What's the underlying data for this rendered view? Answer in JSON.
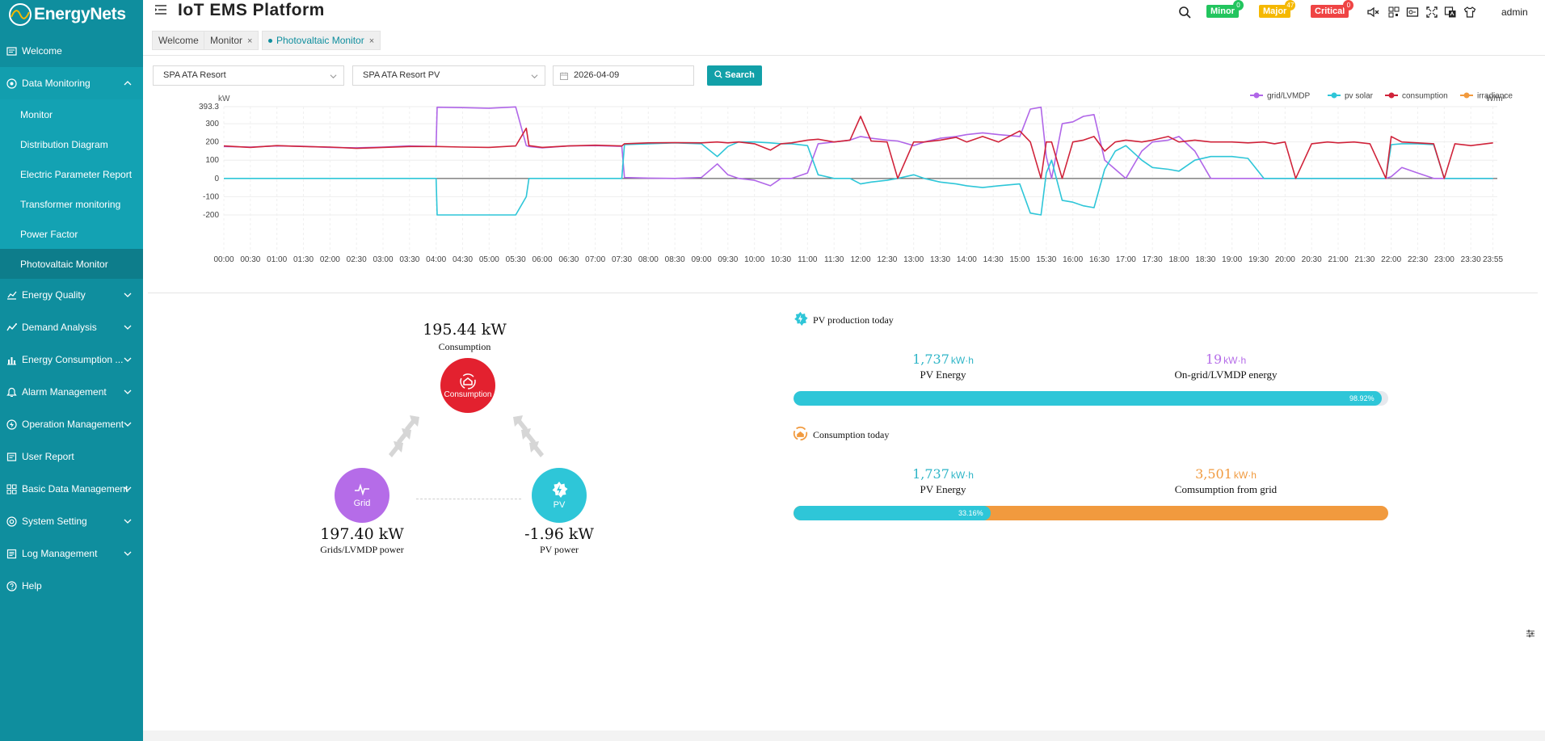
{
  "app": {
    "logo_text": "EnergyNets",
    "title": "IoT EMS Platform",
    "user": "admin"
  },
  "colors": {
    "sidebar": "#0f8e9e",
    "accent": "#12a0a8",
    "grid": "#b066e8",
    "pv": "#2ec6d8",
    "consumption": "#d0233a",
    "irradiance": "#f19a3e"
  },
  "alarms": [
    {
      "label": "Minor",
      "count": "0",
      "color": "#22c55e"
    },
    {
      "label": "Major",
      "count": "47",
      "color": "#f5b800"
    },
    {
      "label": "Critical",
      "count": "0",
      "color": "#ef4444"
    }
  ],
  "header_icons": [
    "search-icon",
    "mute-icon",
    "qrcode-icon",
    "screen-icon",
    "fullscreen-icon",
    "translate-icon",
    "theme-icon"
  ],
  "sidebar": {
    "items": [
      {
        "label": "Welcome",
        "icon": "welcome-icon"
      },
      {
        "label": "Data Monitoring",
        "icon": "monitoring-icon",
        "open": true,
        "children": [
          "Monitor",
          "Distribution Diagram",
          "Electric Parameter Report",
          "Transformer monitoring",
          "Power Factor",
          "Photovaltaic Monitor"
        ]
      },
      {
        "label": "Energy Quality",
        "icon": "quality-icon"
      },
      {
        "label": "Demand Analysis",
        "icon": "demand-icon"
      },
      {
        "label": "Energy Consumption ...",
        "icon": "consumption-icon"
      },
      {
        "label": "Alarm Management",
        "icon": "alarm-icon"
      },
      {
        "label": "Operation Management",
        "icon": "operation-icon"
      },
      {
        "label": "User Report",
        "icon": "report-icon"
      },
      {
        "label": "Basic Data Management",
        "icon": "data-icon"
      },
      {
        "label": "System Setting",
        "icon": "setting-icon"
      },
      {
        "label": "Log Management",
        "icon": "log-icon"
      },
      {
        "label": "Help",
        "icon": "help-icon"
      }
    ]
  },
  "tabs": [
    {
      "label": "Welcome"
    },
    {
      "label": "Monitor",
      "close": "×"
    },
    {
      "label": "Photovaltaic Monitor",
      "close": "×",
      "active": true
    }
  ],
  "filters": {
    "site": "SPA ATA Resort",
    "device": "SPA ATA Resort PV",
    "date": "2026-04-09",
    "search_label": "Search"
  },
  "chart_data": {
    "type": "line",
    "ylabel_left": "kW",
    "ylabel_right": "W/m²",
    "y_ticks": [
      -200,
      -100,
      0,
      100,
      200,
      300,
      393.3
    ],
    "ylim": [
      -200,
      393.3
    ],
    "x_ticks": [
      "00:00",
      "00:30",
      "01:00",
      "01:30",
      "02:00",
      "02:30",
      "03:00",
      "03:30",
      "04:00",
      "04:30",
      "05:00",
      "05:30",
      "06:00",
      "06:30",
      "07:00",
      "07:30",
      "08:00",
      "08:30",
      "09:00",
      "09:30",
      "10:00",
      "10:30",
      "11:00",
      "11:30",
      "12:00",
      "12:30",
      "13:00",
      "13:30",
      "14:00",
      "14:30",
      "15:00",
      "15:30",
      "16:00",
      "16:30",
      "17:00",
      "17:30",
      "18:00",
      "18:30",
      "19:00",
      "19:30",
      "20:00",
      "20:30",
      "21:00",
      "21:30",
      "22:00",
      "22:30",
      "23:00",
      "23:30",
      "23:55"
    ],
    "legend": [
      "grid/LVMDP",
      "pv solar",
      "consumption",
      "irradiance"
    ],
    "legend_position": "top-right",
    "hours": [
      0,
      0.5,
      1,
      1.5,
      2,
      2.5,
      3,
      3.5,
      4,
      4.02,
      4.5,
      5,
      5.5,
      5.7,
      5.75,
      6,
      6.5,
      7,
      7.5,
      7.55,
      8,
      8.5,
      9,
      9.3,
      9.5,
      9.7,
      10,
      10.3,
      10.5,
      10.7,
      11,
      11.2,
      11.5,
      11.8,
      12,
      12.2,
      12.5,
      12.7,
      13,
      13.2,
      13.5,
      13.8,
      14,
      14.3,
      14.6,
      15,
      15.2,
      15.4,
      15.5,
      15.6,
      15.8,
      16,
      16.2,
      16.4,
      16.6,
      16.8,
      17,
      17.3,
      17.5,
      17.8,
      18,
      18.3,
      18.6,
      19,
      19.3,
      19.6,
      19.8,
      20,
      20.2,
      20.5,
      20.8,
      21,
      21.3,
      21.6,
      21.9,
      22,
      22.2,
      22.5,
      22.8,
      23,
      23.2,
      23.5,
      23.92
    ],
    "series": [
      {
        "name": "grid/LVMDP",
        "values": [
          175,
          172,
          178,
          176,
          170,
          168,
          172,
          178,
          175,
          390,
          388,
          385,
          392,
          180,
          175,
          168,
          178,
          180,
          176,
          5,
          2,
          0,
          5,
          80,
          20,
          0,
          -10,
          -40,
          0,
          0,
          30,
          190,
          200,
          210,
          230,
          220,
          210,
          205,
          180,
          200,
          220,
          230,
          240,
          250,
          240,
          230,
          380,
          390,
          120,
          0,
          300,
          310,
          340,
          350,
          100,
          50,
          0,
          150,
          200,
          210,
          230,
          150,
          0,
          0,
          0,
          0,
          0,
          0,
          0,
          0,
          0,
          0,
          0,
          0,
          0,
          10,
          60,
          30,
          0,
          0,
          0,
          0,
          0
        ]
      },
      {
        "name": "pv solar",
        "values": [
          0,
          0,
          0,
          0,
          0,
          0,
          0,
          0,
          0,
          -215,
          -215,
          -215,
          -215,
          -100,
          0,
          0,
          0,
          0,
          0,
          185,
          190,
          195,
          190,
          120,
          175,
          200,
          200,
          195,
          190,
          190,
          180,
          20,
          0,
          0,
          -30,
          -20,
          -10,
          0,
          20,
          0,
          -20,
          -30,
          -40,
          -50,
          -40,
          -30,
          -190,
          -200,
          30,
          100,
          -120,
          -130,
          -150,
          -160,
          50,
          150,
          180,
          100,
          60,
          50,
          40,
          100,
          120,
          120,
          110,
          0,
          0,
          0,
          0,
          0,
          0,
          0,
          0,
          0,
          0,
          185,
          190,
          190,
          185,
          0,
          0,
          0,
          0
        ]
      },
      {
        "name": "consumption",
        "values": [
          178,
          170,
          180,
          175,
          172,
          165,
          170,
          175,
          175,
          175,
          172,
          170,
          178,
          275,
          180,
          170,
          178,
          182,
          178,
          190,
          195,
          196,
          195,
          200,
          195,
          200,
          190,
          155,
          190,
          195,
          210,
          215,
          200,
          210,
          340,
          205,
          200,
          0,
          200,
          200,
          210,
          225,
          200,
          230,
          200,
          260,
          200,
          0,
          200,
          200,
          0,
          200,
          210,
          230,
          150,
          200,
          210,
          200,
          210,
          230,
          200,
          210,
          200,
          200,
          195,
          200,
          190,
          200,
          0,
          190,
          200,
          195,
          200,
          190,
          0,
          230,
          200,
          195,
          190,
          0,
          190,
          180,
          195
        ]
      }
    ]
  },
  "flow": {
    "consumption": {
      "value": "195.44 kW",
      "label": "Consumption",
      "node_text": "Consumption",
      "icon": "home-icon"
    },
    "grid": {
      "value": "197.40 kW",
      "label": "Grids/LVMDP power",
      "node_text": "Grid",
      "icon": "grid-pulse-icon"
    },
    "pv": {
      "value": "-1.96 kW",
      "label": "PV power",
      "node_text": "PV",
      "icon": "sun-icon"
    }
  },
  "pv_today": {
    "title": "PV production today",
    "left": {
      "value": "1,737",
      "unit": "kW·h",
      "label": "PV Energy"
    },
    "right": {
      "value": "19",
      "unit": "kW·h",
      "label": "On-grid/LVMDP energy"
    },
    "percent": "98.92%",
    "fraction": 0.9892
  },
  "consumption_today": {
    "title": "Consumption today",
    "left": {
      "value": "1,737",
      "unit": "kW·h",
      "label": "PV Energy"
    },
    "right": {
      "value": "3,501",
      "unit": "kW·h",
      "label": "Comsumption from grid"
    },
    "percent": "33.16%",
    "fraction": 0.3316
  }
}
